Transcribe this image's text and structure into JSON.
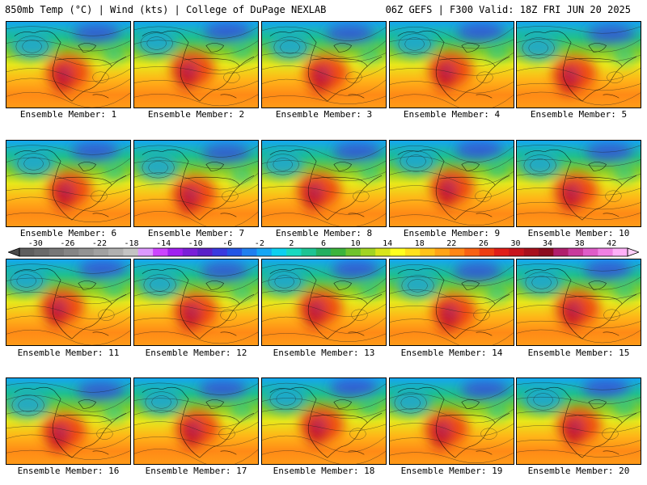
{
  "header": {
    "left": "850mb Temp (°C) | Wind (kts) | College of DuPage NEXLAB",
    "right": "06Z GEFS | F300 Valid: 18Z FRI JUN 20 2025"
  },
  "colorbar": {
    "labels": [
      "-30",
      "-26",
      "-22",
      "-18",
      "-14",
      "-10",
      "-6",
      "-2",
      "2",
      "6",
      "10",
      "14",
      "18",
      "22",
      "26",
      "30",
      "34",
      "38",
      "42"
    ],
    "min": -32,
    "max": 44,
    "step": 2,
    "colors": [
      "#5e5e5e",
      "#6a6a6a",
      "#777777",
      "#858585",
      "#939393",
      "#a1a1a1",
      "#b0b0b0",
      "#c4c4c4",
      "#dd99ff",
      "#cc44ff",
      "#a020f0",
      "#7a1fd8",
      "#5a20c8",
      "#3a3adf",
      "#2355e6",
      "#1f7ff0",
      "#15a6f5",
      "#0cd0f0",
      "#17d9c0",
      "#1dc493",
      "#24b060",
      "#3cb43c",
      "#6fc32d",
      "#a2d423",
      "#d8e51b",
      "#ffff1e",
      "#ffe11c",
      "#ffc31a",
      "#ffa418",
      "#ff8616",
      "#f86214",
      "#ee3e12",
      "#e01e18",
      "#c8141c",
      "#a8101c",
      "#8c0c20",
      "#b01e6c",
      "#c83a9c",
      "#df5cc8",
      "#f080e4",
      "#ffb0f8"
    ]
  },
  "members": [
    {
      "label": "Ensemble Member: 1"
    },
    {
      "label": "Ensemble Member: 2"
    },
    {
      "label": "Ensemble Member: 3"
    },
    {
      "label": "Ensemble Member: 4"
    },
    {
      "label": "Ensemble Member: 5"
    },
    {
      "label": "Ensemble Member: 6"
    },
    {
      "label": "Ensemble Member: 7"
    },
    {
      "label": "Ensemble Member: 8"
    },
    {
      "label": "Ensemble Member: 9"
    },
    {
      "label": "Ensemble Member: 10"
    },
    {
      "label": "Ensemble Member: 11"
    },
    {
      "label": "Ensemble Member: 12"
    },
    {
      "label": "Ensemble Member: 13"
    },
    {
      "label": "Ensemble Member: 14"
    },
    {
      "label": "Ensemble Member: 15"
    },
    {
      "label": "Ensemble Member: 16"
    },
    {
      "label": "Ensemble Member: 17"
    },
    {
      "label": "Ensemble Member: 18"
    },
    {
      "label": "Ensemble Member: 19"
    },
    {
      "label": "Ensemble Member: 20"
    }
  ]
}
